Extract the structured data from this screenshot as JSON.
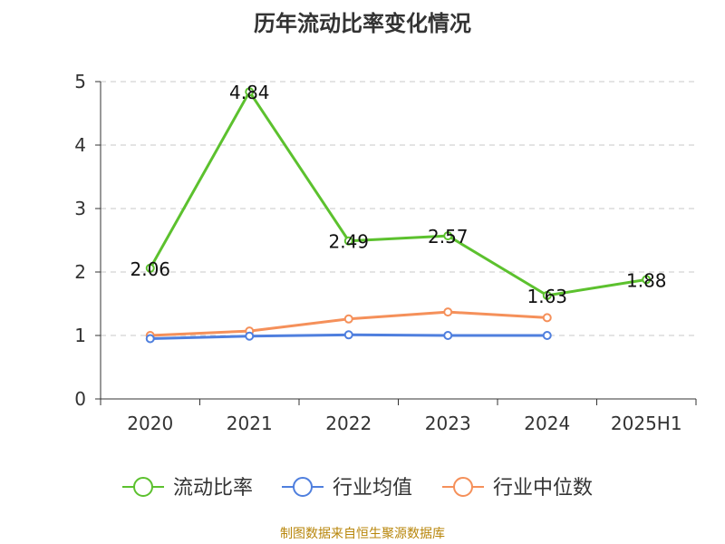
{
  "chart_data": {
    "type": "line",
    "title": "历年流动比率变化情况",
    "categories": [
      "2020",
      "2021",
      "2022",
      "2023",
      "2024",
      "2025H1"
    ],
    "ylim": [
      0,
      5
    ],
    "yticks": [
      "0",
      "1",
      "2",
      "3",
      "4",
      "5"
    ],
    "grid": true,
    "legend_position": "bottom",
    "series": [
      {
        "name": "流动比率",
        "color": "#5cc12e",
        "values": [
          2.06,
          4.84,
          2.49,
          2.57,
          1.63,
          1.88
        ],
        "labels": [
          "2.06",
          "4.84",
          "2.49",
          "2.57",
          "1.63",
          "1.88"
        ]
      },
      {
        "name": "行业均值",
        "color": "#4f7fde",
        "values": [
          0.95,
          0.99,
          1.01,
          1.0,
          1.0,
          null
        ]
      },
      {
        "name": "行业中位数",
        "color": "#f5905a",
        "values": [
          1.0,
          1.07,
          1.26,
          1.37,
          1.28,
          null
        ]
      }
    ]
  },
  "source": "制图数据来自恒生聚源数据库"
}
